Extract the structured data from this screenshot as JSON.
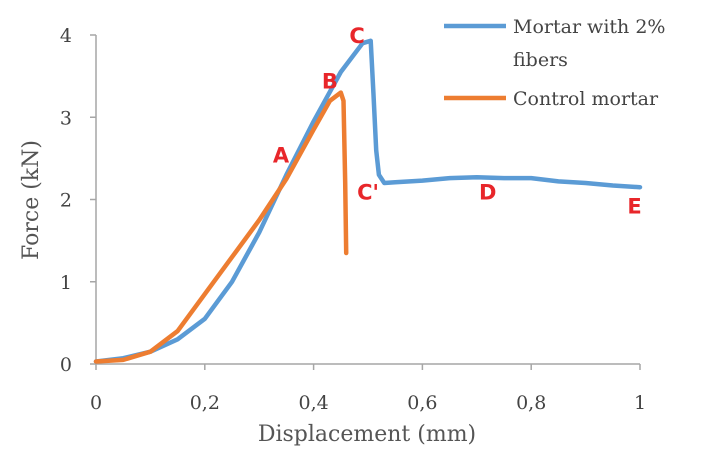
{
  "chart_data": {
    "type": "line",
    "xlabel": "Displacement (mm)",
    "ylabel": "Force (kN)",
    "xlim": [
      0,
      1
    ],
    "ylim": [
      0,
      4
    ],
    "x_ticks": [
      {
        "value": 0,
        "label": "0"
      },
      {
        "value": 0.2,
        "label": "0,2"
      },
      {
        "value": 0.4,
        "label": "0,4"
      },
      {
        "value": 0.6,
        "label": "0,6"
      },
      {
        "value": 0.8,
        "label": "0,8"
      },
      {
        "value": 1,
        "label": "1"
      }
    ],
    "y_ticks": [
      {
        "value": 0,
        "label": "0"
      },
      {
        "value": 1,
        "label": "1"
      },
      {
        "value": 2,
        "label": "2"
      },
      {
        "value": 3,
        "label": "3"
      },
      {
        "value": 4,
        "label": "4"
      }
    ],
    "grid": false,
    "legend_position": "top-right",
    "series": [
      {
        "name": "Mortar with 2% fibers",
        "legend_lines": [
          "Mortar with 2%",
          "fibers"
        ],
        "color": "#5b9bd5",
        "x": [
          0,
          0.05,
          0.1,
          0.15,
          0.2,
          0.25,
          0.3,
          0.35,
          0.4,
          0.45,
          0.49,
          0.505,
          0.51,
          0.515,
          0.52,
          0.53,
          0.55,
          0.6,
          0.65,
          0.7,
          0.75,
          0.8,
          0.85,
          0.9,
          0.95,
          1.0
        ],
        "y": [
          0.03,
          0.07,
          0.15,
          0.3,
          0.55,
          1.0,
          1.6,
          2.3,
          2.95,
          3.55,
          3.9,
          3.93,
          3.3,
          2.6,
          2.3,
          2.2,
          2.21,
          2.23,
          2.26,
          2.27,
          2.26,
          2.26,
          2.22,
          2.2,
          2.17,
          2.15
        ]
      },
      {
        "name": "Control mortar",
        "legend_lines": [
          "Control mortar"
        ],
        "color": "#ed7d31",
        "x": [
          0,
          0.05,
          0.1,
          0.15,
          0.2,
          0.25,
          0.3,
          0.35,
          0.4,
          0.43,
          0.45,
          0.455,
          0.458,
          0.46
        ],
        "y": [
          0.03,
          0.05,
          0.15,
          0.4,
          0.85,
          1.3,
          1.75,
          2.25,
          2.85,
          3.2,
          3.3,
          3.2,
          2.2,
          1.35
        ]
      }
    ],
    "annotations": [
      {
        "text": "A",
        "x": 0.34,
        "y": 2.45
      },
      {
        "text": "B",
        "x": 0.43,
        "y": 3.35
      },
      {
        "text": "C",
        "x": 0.48,
        "y": 3.9
      },
      {
        "text": "C'",
        "x": 0.5,
        "y": 2.0
      },
      {
        "text": "D",
        "x": 0.72,
        "y": 2.0
      },
      {
        "text": "E",
        "x": 0.99,
        "y": 1.83
      }
    ],
    "annotation_color": "#e8262a"
  }
}
